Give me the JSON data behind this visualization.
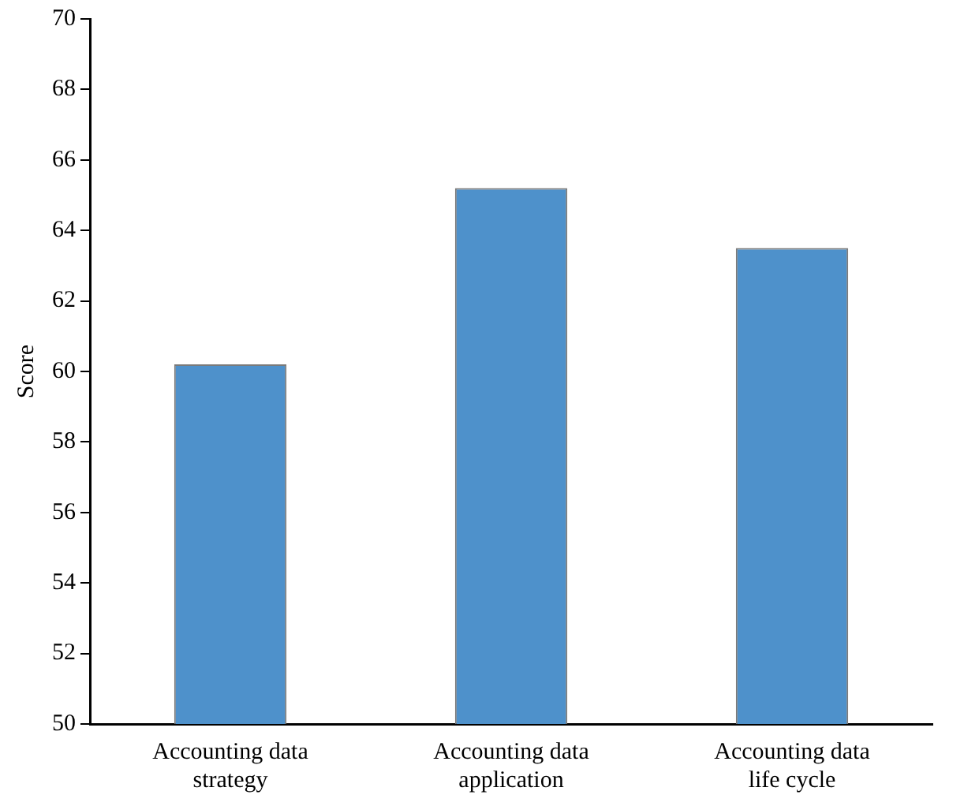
{
  "chart_data": {
    "type": "bar",
    "ylabel": "Score",
    "categories": [
      "Accounting data\nstrategy",
      "Accounting data\napplication",
      "Accounting data\nlife cycle"
    ],
    "values": [
      60.2,
      65.2,
      63.5
    ],
    "color": "#4e91cb",
    "ylim": [
      50,
      70
    ],
    "yticks": [
      50,
      52,
      54,
      56,
      58,
      60,
      62,
      64,
      66,
      68,
      70
    ],
    "grid": false,
    "legend": false
  }
}
